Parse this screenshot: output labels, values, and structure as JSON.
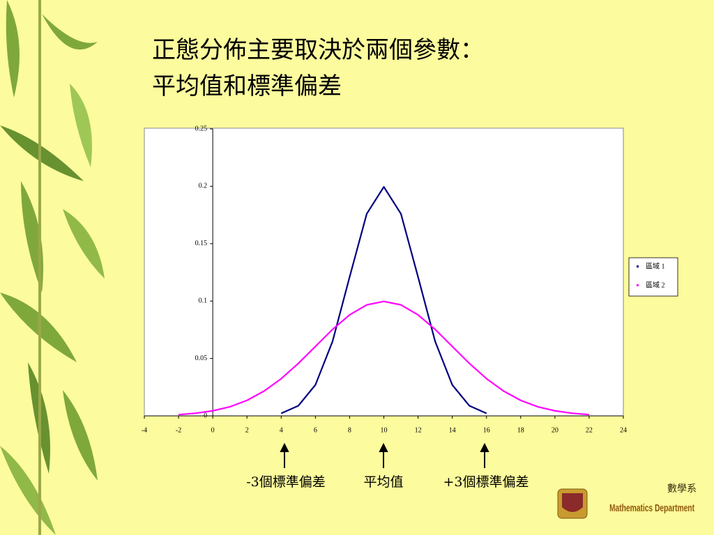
{
  "slide_title": [
    "正態分佈主要取決於兩個參數：",
    "平均值和標準偏差"
  ],
  "chart_data": {
    "type": "line",
    "series": [
      {
        "name": "區域 1",
        "color": "#000080",
        "x": [
          4,
          5,
          6,
          7,
          8,
          9,
          10,
          11,
          12,
          13,
          14,
          15,
          16
        ],
        "values": [
          0.0022,
          0.0088,
          0.027,
          0.0648,
          0.121,
          0.176,
          0.1995,
          0.176,
          0.121,
          0.0648,
          0.027,
          0.0088,
          0.0022
        ]
      },
      {
        "name": "區域 2",
        "color": "#ff00ff",
        "x": [
          -2,
          -1,
          0,
          1,
          2,
          3,
          4,
          5,
          6,
          7,
          8,
          9,
          10,
          11,
          12,
          13,
          14,
          15,
          16,
          17,
          18,
          19,
          20,
          21,
          22
        ],
        "values": [
          0.0011,
          0.0023,
          0.0044,
          0.0079,
          0.0135,
          0.0216,
          0.0324,
          0.0457,
          0.0605,
          0.0753,
          0.088,
          0.0967,
          0.0997,
          0.0967,
          0.088,
          0.0753,
          0.0605,
          0.0457,
          0.0324,
          0.0216,
          0.0135,
          0.0079,
          0.0044,
          0.0023,
          0.0011
        ]
      }
    ],
    "xlim": [
      -4,
      24
    ],
    "xticks": [
      -4,
      -2,
      0,
      2,
      4,
      6,
      8,
      10,
      12,
      14,
      16,
      18,
      20,
      22,
      24
    ],
    "ylim": [
      0,
      0.25
    ],
    "yticks": [
      0,
      0.05,
      0.1,
      0.15,
      0.2,
      0.25
    ],
    "legend": "right",
    "annotations": [
      "-3個標準偏差",
      "平均值",
      "+3個標準偏差"
    ]
  },
  "logo": {
    "title": "數學系",
    "subtitle": "Mathematics Department"
  }
}
